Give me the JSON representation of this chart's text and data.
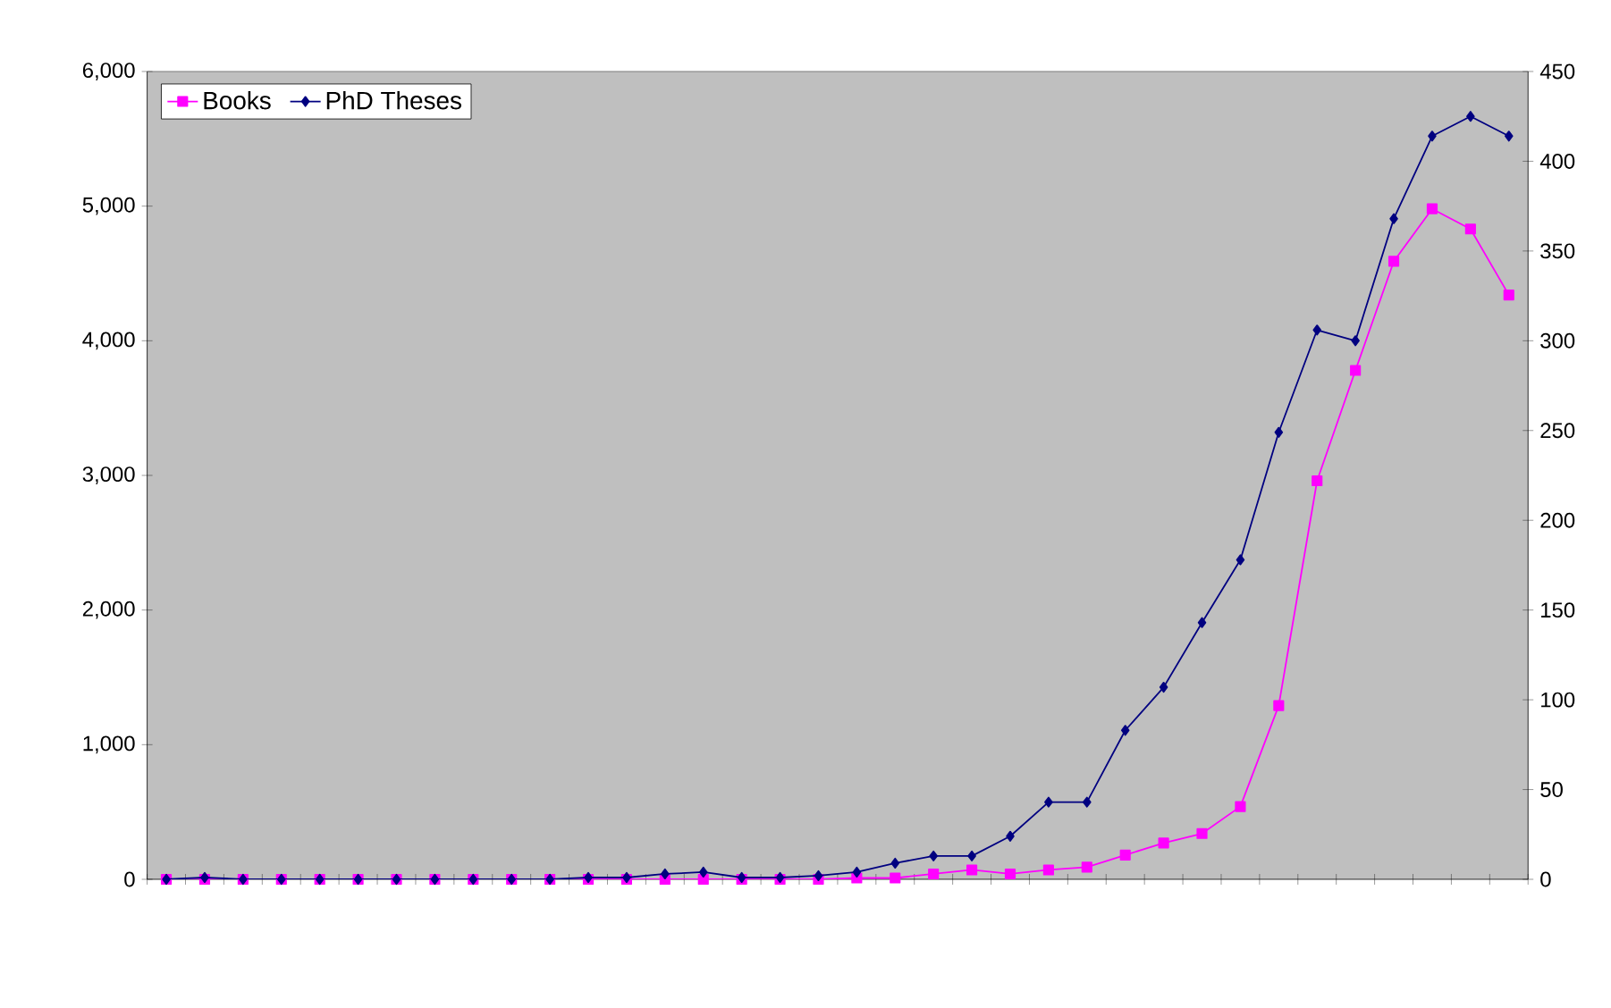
{
  "chart_data": {
    "type": "line",
    "categories": [
      null,
      null,
      null,
      null,
      null,
      null,
      null,
      null,
      null,
      null,
      null,
      null,
      null,
      null,
      null,
      null,
      null,
      null,
      null,
      null,
      null,
      null,
      null,
      null,
      null,
      null,
      null,
      null,
      null,
      null,
      null,
      null,
      null,
      null,
      null,
      null
    ],
    "series": [
      {
        "name": "Books",
        "color": "#ff00ff",
        "marker": "square",
        "axis": "y",
        "values": [
          0,
          0,
          0,
          0,
          0,
          0,
          0,
          0,
          0,
          0,
          0,
          0,
          0,
          0,
          0,
          0,
          0,
          0,
          10,
          10,
          40,
          70,
          40,
          70,
          90,
          180,
          270,
          340,
          540,
          1290,
          2960,
          3780,
          4590,
          4980,
          4830,
          4340
        ]
      },
      {
        "name": "PhD Theses",
        "color": "#000080",
        "marker": "diamond",
        "axis": "y2",
        "values": [
          0,
          1,
          0,
          0,
          0,
          0,
          0,
          0,
          0,
          0,
          0,
          1,
          1,
          3,
          4,
          1,
          1,
          2,
          4,
          9,
          13,
          13,
          24,
          43,
          43,
          83,
          107,
          143,
          178,
          249,
          306,
          300,
          368,
          414,
          425,
          414
        ]
      }
    ],
    "ylim": [
      0,
      6000
    ],
    "yticks": [
      0,
      {
        "value": 1000,
        "label": "1,000"
      },
      {
        "value": 2000,
        "label": "2,000"
      },
      {
        "value": 3000,
        "label": "3,000"
      },
      {
        "value": 4000,
        "label": "4,000"
      },
      {
        "value": 5000,
        "label": "5,000"
      },
      {
        "value": 6000,
        "label": "6,000"
      }
    ],
    "y2lim": [
      0,
      450
    ],
    "y2ticks": [
      0,
      50,
      100,
      150,
      200,
      250,
      300,
      350,
      400,
      450
    ],
    "legend": "top left",
    "grid": false,
    "line_style": "solid"
  }
}
